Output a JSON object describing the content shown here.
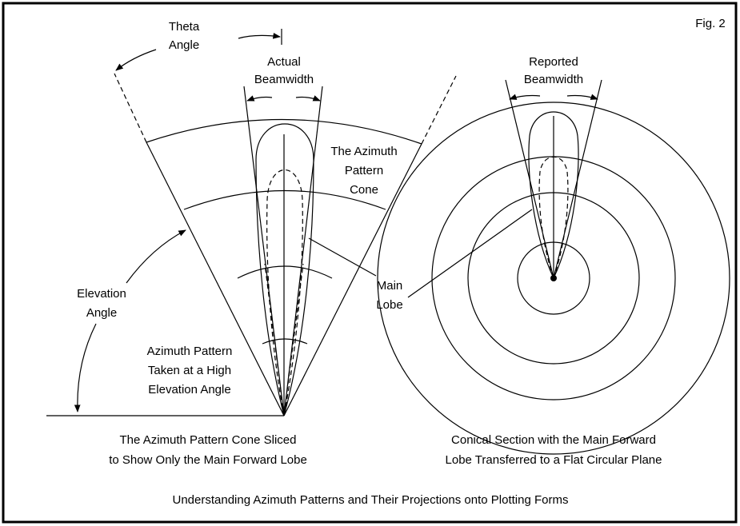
{
  "figure_label": "Fig. 2",
  "theta": [
    "Theta",
    "Angle"
  ],
  "actual_beamwidth": [
    "Actual",
    "Beamwidth"
  ],
  "reported_beamwidth": [
    "Reported",
    "Beamwidth"
  ],
  "cone_label": [
    "The Azimuth",
    "Pattern",
    "Cone"
  ],
  "main_lobe": [
    "Main",
    "Lobe"
  ],
  "elevation": [
    "Elevation",
    "Angle"
  ],
  "high_elevation": [
    "Azimuth Pattern",
    "Taken at a High",
    "Elevation Angle"
  ],
  "left_caption": [
    "The Azimuth Pattern Cone Sliced",
    "to Show Only the Main Forward Lobe"
  ],
  "right_caption": [
    "Conical Section with the Main Forward",
    "Lobe Transferred to a Flat Circular Plane"
  ],
  "caption": "Understanding Azimuth Patterns and Their Projections onto Plotting Forms"
}
